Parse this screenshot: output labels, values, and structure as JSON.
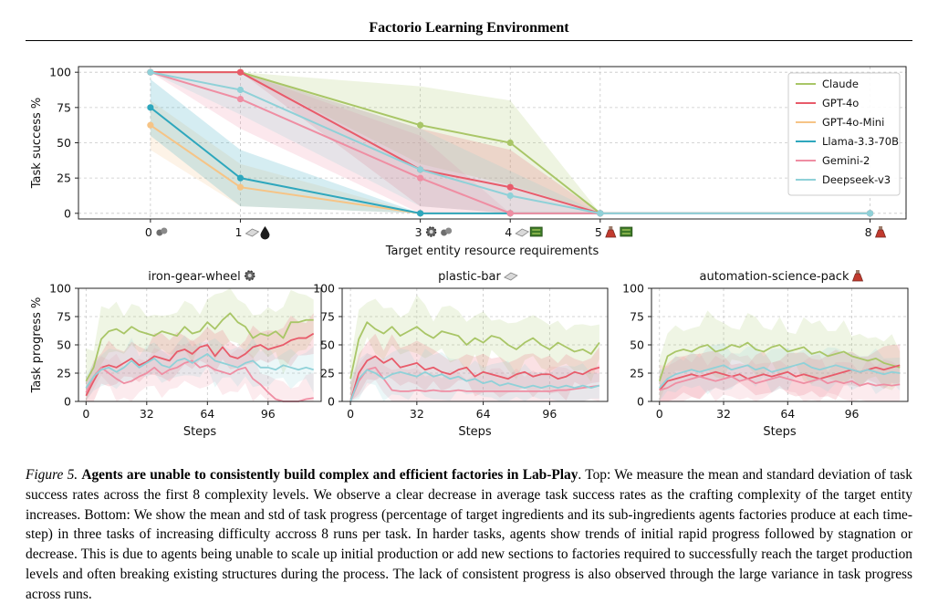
{
  "header": {
    "title": "Factorio Learning Environment"
  },
  "icons": {
    "gear": "gear-icon",
    "plate": "plastic-plate-icon",
    "oil": "oil-drop-icon",
    "flask": "science-flask-icon",
    "circuit": "circuit-icon",
    "ore": "ore-icon"
  },
  "colors": {
    "Claude": "#a9c667",
    "GPT-4o": "#e85b6a",
    "GPT-4o-Mini": "#f6c486",
    "Llama-3.3-70B": "#2ea7bd",
    "Gemini-2": "#ef8ea3",
    "Deepseek-v3": "#8fd1d8"
  },
  "chart_data": [
    {
      "type": "line",
      "xlabel": "Target entity resource requirements",
      "ylabel": "Task success %",
      "x": [
        0,
        1,
        3,
        4,
        5,
        8
      ],
      "xticks": [
        "0",
        "1",
        "3",
        "4",
        "5",
        "8"
      ],
      "xlim": [
        -0.8,
        8.4
      ],
      "ylim": [
        -4,
        104
      ],
      "yticks": [
        0,
        25,
        50,
        75,
        100
      ],
      "grid": true,
      "legend": "top-right",
      "series": [
        {
          "name": "Claude",
          "values": [
            100,
            100,
            62.5,
            50,
            0,
            0
          ],
          "lower": [
            100,
            100,
            35,
            20,
            0,
            0
          ],
          "upper": [
            100,
            100,
            90,
            80,
            0,
            0
          ]
        },
        {
          "name": "GPT-4o",
          "values": [
            100,
            100,
            31,
            18.5,
            0,
            0
          ],
          "lower": [
            100,
            100,
            5,
            0,
            0,
            0
          ],
          "upper": [
            100,
            100,
            60,
            45,
            0,
            0
          ]
        },
        {
          "name": "GPT-4o-Mini",
          "values": [
            62.5,
            18.5,
            0,
            0,
            0,
            0
          ],
          "lower": [
            45,
            5,
            0,
            0,
            0,
            0
          ],
          "upper": [
            80,
            35,
            0,
            0,
            0,
            0
          ]
        },
        {
          "name": "Llama-3.3-70B",
          "values": [
            75,
            25,
            0,
            0,
            0,
            0
          ],
          "lower": [
            55,
            5,
            0,
            0,
            0,
            0
          ],
          "upper": [
            95,
            45,
            0,
            0,
            0,
            0
          ]
        },
        {
          "name": "Gemini-2",
          "values": [
            100,
            81,
            25,
            0,
            0,
            0
          ],
          "lower": [
            100,
            60,
            0,
            0,
            0,
            0
          ],
          "upper": [
            100,
            100,
            55,
            0,
            0,
            0
          ]
        },
        {
          "name": "Deepseek-v3",
          "values": [
            100,
            87.5,
            31,
            12.5,
            0,
            0
          ],
          "lower": [
            100,
            70,
            5,
            0,
            0,
            0
          ],
          "upper": [
            100,
            100,
            60,
            30,
            0,
            0
          ]
        }
      ]
    },
    {
      "type": "line",
      "title": "iron-gear-wheel",
      "xlabel": "Steps",
      "ylabel": "Task progress %",
      "xticks": [
        0,
        32,
        64,
        96
      ],
      "yticks": [
        0,
        25,
        50,
        75,
        100
      ],
      "xlim": [
        -4,
        124
      ],
      "ylim": [
        0,
        100
      ],
      "grid": true,
      "series": [
        {
          "name": "Claude",
          "x": [
            0,
            4,
            8,
            12,
            16,
            20,
            24,
            28,
            32,
            36,
            40,
            44,
            48,
            52,
            56,
            60,
            64,
            68,
            72,
            76,
            80,
            84,
            88,
            92,
            96,
            100,
            104,
            108,
            112,
            116,
            120
          ],
          "values": [
            18,
            30,
            55,
            62,
            64,
            60,
            66,
            62,
            60,
            58,
            62,
            60,
            58,
            66,
            60,
            62,
            70,
            64,
            72,
            78,
            70,
            66,
            56,
            60,
            58,
            62,
            56,
            70,
            70,
            72,
            72
          ]
        },
        {
          "name": "GPT-4o",
          "x": [
            0,
            4,
            8,
            12,
            16,
            20,
            24,
            28,
            32,
            36,
            40,
            44,
            48,
            52,
            56,
            60,
            64,
            68,
            72,
            76,
            80,
            84,
            88,
            92,
            96,
            100,
            104,
            108,
            112,
            116,
            120
          ],
          "values": [
            5,
            18,
            30,
            32,
            30,
            34,
            38,
            32,
            35,
            40,
            38,
            36,
            44,
            46,
            42,
            48,
            50,
            40,
            48,
            40,
            38,
            42,
            48,
            50,
            46,
            48,
            50,
            54,
            56,
            56,
            60
          ]
        },
        {
          "name": "Gemini-2",
          "x": [
            0,
            4,
            8,
            12,
            16,
            20,
            24,
            28,
            32,
            36,
            40,
            44,
            48,
            52,
            56,
            60,
            64,
            68,
            72,
            76,
            80,
            84,
            88,
            92,
            96,
            100,
            104,
            108,
            112,
            116,
            120
          ],
          "values": [
            8,
            22,
            30,
            25,
            20,
            16,
            18,
            22,
            25,
            30,
            24,
            28,
            30,
            34,
            36,
            30,
            32,
            28,
            26,
            24,
            28,
            30,
            20,
            15,
            8,
            2,
            0,
            0,
            0,
            2,
            3
          ]
        },
        {
          "name": "Deepseek-v3",
          "x": [
            0,
            4,
            8,
            12,
            16,
            20,
            24,
            28,
            32,
            36,
            40,
            44,
            48,
            52,
            56,
            60,
            64,
            68,
            72,
            76,
            80,
            84,
            88,
            92,
            96,
            100,
            104,
            108,
            112,
            116,
            120
          ],
          "values": [
            12,
            22,
            28,
            30,
            26,
            30,
            36,
            30,
            34,
            38,
            32,
            30,
            36,
            38,
            34,
            38,
            42,
            36,
            34,
            32,
            30,
            34,
            36,
            30,
            30,
            28,
            32,
            30,
            28,
            30,
            28
          ]
        }
      ]
    },
    {
      "type": "line",
      "title": "plastic-bar",
      "xlabel": "Steps",
      "ylabel": "",
      "xticks": [
        0,
        32,
        64,
        96
      ],
      "yticks": [
        0,
        25,
        50,
        75,
        100
      ],
      "xlim": [
        -4,
        124
      ],
      "ylim": [
        0,
        100
      ],
      "grid": true,
      "series": [
        {
          "name": "Claude",
          "x": [
            0,
            4,
            8,
            12,
            16,
            20,
            24,
            28,
            32,
            36,
            40,
            44,
            48,
            52,
            56,
            60,
            64,
            68,
            72,
            76,
            80,
            84,
            88,
            92,
            96,
            100,
            104,
            108,
            112,
            116,
            120
          ],
          "values": [
            20,
            55,
            70,
            64,
            60,
            66,
            58,
            62,
            66,
            60,
            56,
            62,
            60,
            58,
            50,
            56,
            52,
            58,
            56,
            50,
            46,
            52,
            56,
            50,
            46,
            52,
            48,
            44,
            46,
            42,
            52
          ]
        },
        {
          "name": "GPT-4o",
          "x": [
            0,
            4,
            8,
            12,
            16,
            20,
            24,
            28,
            32,
            36,
            40,
            44,
            48,
            52,
            56,
            60,
            64,
            68,
            72,
            76,
            80,
            84,
            88,
            92,
            96,
            100,
            104,
            108,
            112,
            116,
            120
          ],
          "values": [
            0,
            25,
            36,
            40,
            34,
            38,
            30,
            32,
            34,
            28,
            30,
            26,
            24,
            28,
            30,
            22,
            26,
            24,
            22,
            20,
            24,
            26,
            22,
            24,
            24,
            20,
            22,
            26,
            24,
            28,
            30
          ]
        },
        {
          "name": "Gemini-2",
          "x": [
            0,
            4,
            8,
            12,
            16,
            20,
            24,
            28,
            32,
            36,
            40,
            44,
            48,
            52,
            56,
            60,
            64,
            68,
            72,
            76,
            80,
            84,
            88,
            92,
            96,
            100,
            104,
            108,
            112,
            116,
            120
          ],
          "values": [
            0,
            18,
            28,
            30,
            20,
            10,
            9,
            9,
            10,
            9,
            10,
            9,
            9,
            10,
            9,
            9,
            9,
            9,
            9,
            9,
            9,
            9,
            9,
            9,
            9,
            10,
            10,
            11,
            12,
            13,
            14
          ]
        },
        {
          "name": "Deepseek-v3",
          "x": [
            0,
            4,
            8,
            12,
            16,
            20,
            24,
            28,
            32,
            36,
            40,
            44,
            48,
            52,
            56,
            60,
            64,
            68,
            72,
            76,
            80,
            84,
            88,
            92,
            96,
            100,
            104,
            108,
            112,
            116,
            120
          ],
          "values": [
            0,
            20,
            28,
            25,
            20,
            24,
            26,
            24,
            22,
            26,
            22,
            24,
            20,
            22,
            18,
            20,
            16,
            18,
            14,
            16,
            14,
            12,
            14,
            12,
            14,
            12,
            14,
            12,
            14,
            12,
            14
          ]
        }
      ]
    },
    {
      "type": "line",
      "title": "automation-science-pack",
      "xlabel": "Steps",
      "ylabel": "",
      "xticks": [
        0,
        32,
        64,
        96
      ],
      "yticks": [
        0,
        25,
        50,
        75,
        100
      ],
      "xlim": [
        -4,
        124
      ],
      "ylim": [
        0,
        100
      ],
      "grid": true,
      "series": [
        {
          "name": "Claude",
          "x": [
            0,
            4,
            8,
            12,
            16,
            20,
            24,
            28,
            32,
            36,
            40,
            44,
            48,
            52,
            56,
            60,
            64,
            68,
            72,
            76,
            80,
            84,
            88,
            92,
            96,
            100,
            104,
            108,
            112,
            116,
            120
          ],
          "values": [
            18,
            40,
            44,
            46,
            44,
            48,
            50,
            44,
            46,
            50,
            48,
            52,
            46,
            44,
            48,
            50,
            44,
            46,
            48,
            42,
            44,
            40,
            42,
            44,
            40,
            38,
            36,
            38,
            34,
            32,
            30
          ]
        },
        {
          "name": "GPT-4o",
          "x": [
            0,
            4,
            8,
            12,
            16,
            20,
            24,
            28,
            32,
            36,
            40,
            44,
            48,
            52,
            56,
            60,
            64,
            68,
            72,
            76,
            80,
            84,
            88,
            92,
            96,
            100,
            104,
            108,
            112,
            116,
            120
          ],
          "values": [
            10,
            18,
            20,
            22,
            24,
            22,
            24,
            26,
            24,
            22,
            24,
            20,
            22,
            24,
            22,
            24,
            26,
            22,
            24,
            22,
            20,
            22,
            24,
            26,
            28,
            26,
            28,
            30,
            28,
            30,
            32
          ]
        },
        {
          "name": "Gemini-2",
          "x": [
            0,
            4,
            8,
            12,
            16,
            20,
            24,
            28,
            32,
            36,
            40,
            44,
            48,
            52,
            56,
            60,
            64,
            68,
            72,
            76,
            80,
            84,
            88,
            92,
            96,
            100,
            104,
            108,
            112,
            116,
            120
          ],
          "values": [
            10,
            12,
            16,
            18,
            20,
            22,
            20,
            18,
            20,
            22,
            18,
            20,
            16,
            18,
            20,
            22,
            20,
            18,
            16,
            18,
            20,
            16,
            18,
            16,
            18,
            14,
            16,
            14,
            15,
            14,
            15
          ]
        },
        {
          "name": "Deepseek-v3",
          "x": [
            0,
            4,
            8,
            12,
            16,
            20,
            24,
            28,
            32,
            36,
            40,
            44,
            48,
            52,
            56,
            60,
            64,
            68,
            72,
            76,
            80,
            84,
            88,
            92,
            96,
            100,
            104,
            108,
            112,
            116,
            120
          ],
          "values": [
            12,
            20,
            24,
            26,
            28,
            26,
            28,
            30,
            32,
            28,
            30,
            32,
            28,
            30,
            26,
            28,
            30,
            32,
            34,
            30,
            28,
            30,
            32,
            30,
            28,
            26,
            28,
            26,
            24,
            26,
            25
          ]
        }
      ]
    }
  ],
  "caption": {
    "label": "Figure 5.",
    "bold": "Agents are unable to consistently build complex and efficient factories in Lab-Play",
    "text": ". Top: We measure the mean and standard deviation of task success rates across the first 8 complexity levels. We observe a clear decrease in average task success rates as the crafting complexity of the target entity increases. Bottom: We show the mean and std of task progress (percentage of target ingredients and its sub-ingredients agents factories produce at each time-step) in three tasks of increasing difficulty accross 8 runs per task. In harder tasks, agents show trends of initial rapid progress followed by stagnation or decrease. This is due to agents being unable to scale up initial production or add new sections to factories required to successfully reach the target production levels and often breaking existing structures during the process. The lack of consistent progress is also observed through the large variance in task progress across runs."
  }
}
